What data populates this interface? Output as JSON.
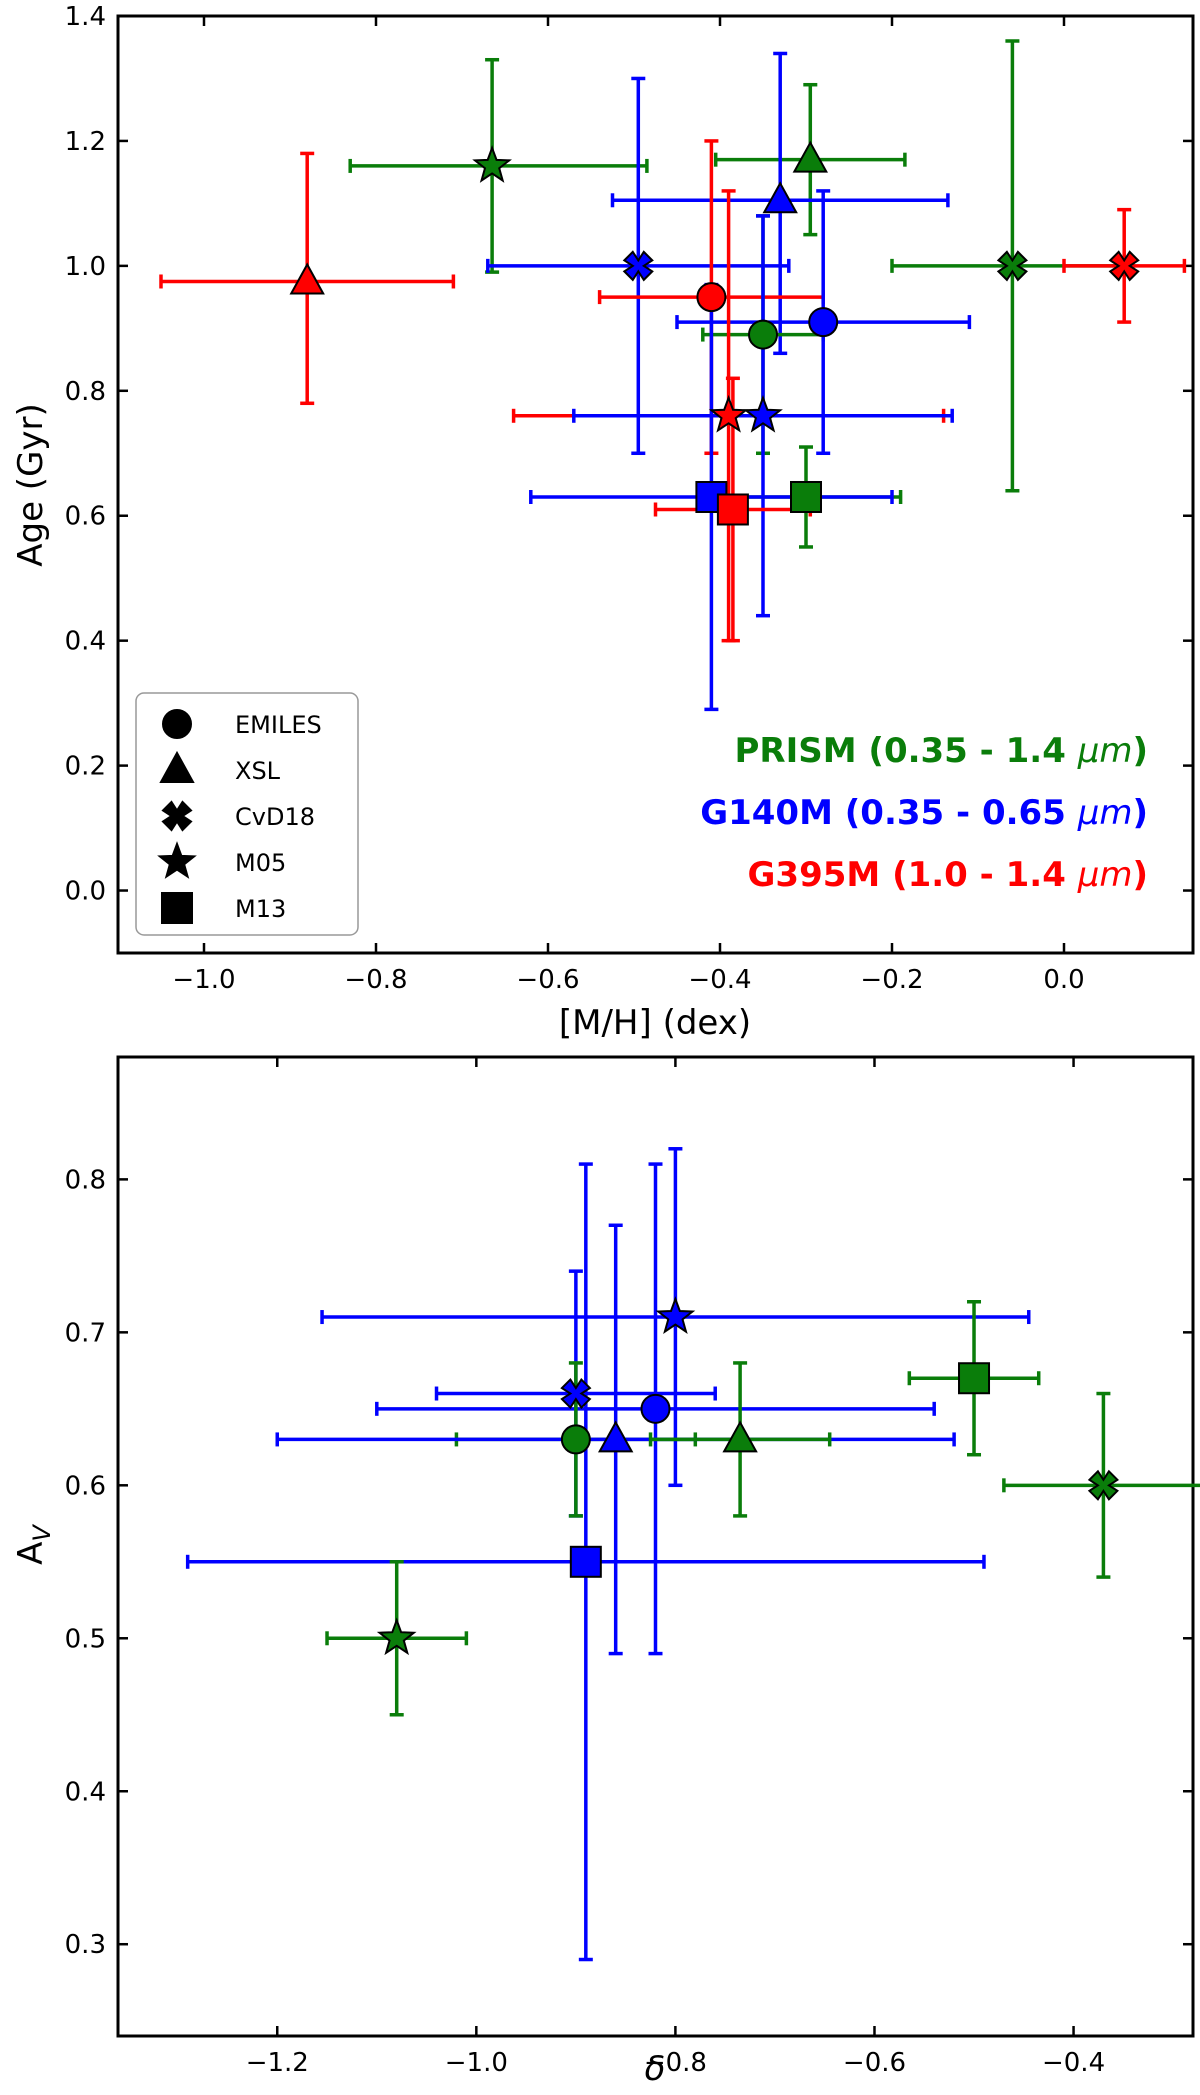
{
  "colors": {
    "PRISM": "#0a7d0a",
    "G140M": "#0000ff",
    "G395M": "#ff0000"
  },
  "legend": {
    "entries": [
      {
        "marker": "circle",
        "label": "EMILES"
      },
      {
        "marker": "triangle",
        "label": "XSL"
      },
      {
        "marker": "x",
        "label": "CvD18"
      },
      {
        "marker": "star",
        "label": "M05"
      },
      {
        "marker": "square",
        "label": "M13"
      }
    ]
  },
  "bands": [
    {
      "key": "PRISM",
      "name": "PRISM",
      "range_pre": "(0.35 - 1.4 ",
      "unit": "μm",
      "range_post": ")"
    },
    {
      "key": "G140M",
      "name": "G140M",
      "range_pre": "(0.35 - 0.65 ",
      "unit": "μm",
      "range_post": ")"
    },
    {
      "key": "G395M",
      "name": "G395M",
      "range_pre": "(1.0 - 1.4 ",
      "unit": "μm",
      "range_post": ")"
    }
  ],
  "chart_data": [
    {
      "type": "scatter",
      "title": "",
      "xlabel": "[M/H] (dex)",
      "ylabel": "Age (Gyr)",
      "xlim": [
        -1.1,
        0.15
      ],
      "ylim": [
        -0.1,
        1.4
      ],
      "xticks": [
        -1.0,
        -0.8,
        -0.6,
        -0.4,
        -0.2,
        0.0
      ],
      "xtick_labels": [
        "−1.0",
        "−0.8",
        "−0.6",
        "−0.4",
        "−0.2",
        "0.0"
      ],
      "yticks": [
        0.0,
        0.2,
        0.4,
        0.6,
        0.8,
        1.0,
        1.2,
        1.4
      ],
      "ytick_labels": [
        "0.0",
        "0.2",
        "0.4",
        "0.6",
        "0.8",
        "1.0",
        "1.2",
        "1.4"
      ],
      "points": [
        {
          "series": "G395M",
          "model": "XSL",
          "x": -0.88,
          "y": 0.975,
          "xerr": [
            0.17,
            0.17
          ],
          "yerr": [
            0.195,
            0.205
          ]
        },
        {
          "series": "PRISM",
          "model": "M05",
          "x": -0.665,
          "y": 1.16,
          "xerr": [
            0.165,
            0.18
          ],
          "yerr": [
            0.17,
            0.17
          ]
        },
        {
          "series": "PRISM",
          "model": "XSL",
          "x": -0.295,
          "y": 1.17,
          "xerr": [
            0.11,
            0.11
          ],
          "yerr": [
            0.12,
            0.12
          ]
        },
        {
          "series": "PRISM",
          "model": "CvD18",
          "x": -0.06,
          "y": 1.0,
          "xerr": [
            0.14,
            0.14
          ],
          "yerr": [
            0.36,
            0.36
          ]
        },
        {
          "series": "G395M",
          "model": "CvD18",
          "x": 0.07,
          "y": 1.0,
          "xerr": [
            0.07,
            0.07
          ],
          "yerr": [
            0.09,
            0.09
          ]
        },
        {
          "series": "G140M",
          "model": "CvD18",
          "x": -0.495,
          "y": 1.0,
          "xerr": [
            0.175,
            0.175
          ],
          "yerr": [
            0.3,
            0.3
          ]
        },
        {
          "series": "G140M",
          "model": "XSL",
          "x": -0.33,
          "y": 1.105,
          "xerr": [
            0.195,
            0.195
          ],
          "yerr": [
            0.245,
            0.235
          ]
        },
        {
          "series": "G395M",
          "model": "EMILES",
          "x": -0.41,
          "y": 0.95,
          "xerr": [
            0.13,
            0.13
          ],
          "yerr": [
            0.25,
            0.25
          ]
        },
        {
          "series": "PRISM",
          "model": "EMILES",
          "x": -0.35,
          "y": 0.89,
          "xerr": [
            0.07,
            0.07
          ],
          "yerr": [
            0.19,
            0.19
          ]
        },
        {
          "series": "G140M",
          "model": "EMILES",
          "x": -0.28,
          "y": 0.91,
          "xerr": [
            0.17,
            0.17
          ],
          "yerr": [
            0.21,
            0.21
          ]
        },
        {
          "series": "G395M",
          "model": "M05",
          "x": -0.39,
          "y": 0.76,
          "xerr": [
            0.25,
            0.25
          ],
          "yerr": [
            0.36,
            0.36
          ]
        },
        {
          "series": "G140M",
          "model": "M05",
          "x": -0.35,
          "y": 0.76,
          "xerr": [
            0.22,
            0.22
          ],
          "yerr": [
            0.32,
            0.32
          ]
        },
        {
          "series": "PRISM",
          "model": "M13",
          "x": -0.3,
          "y": 0.63,
          "xerr": [
            0.11,
            0.11
          ],
          "yerr": [
            0.08,
            0.08
          ]
        },
        {
          "series": "G140M",
          "model": "M13",
          "x": -0.41,
          "y": 0.63,
          "xerr": [
            0.21,
            0.21
          ],
          "yerr": [
            0.34,
            0.34
          ]
        },
        {
          "series": "G395M",
          "model": "M13",
          "x": -0.385,
          "y": 0.61,
          "xerr": [
            0.09,
            0.09
          ],
          "yerr": [
            0.21,
            0.21
          ]
        }
      ]
    },
    {
      "type": "scatter",
      "title": "",
      "xlabel": "δ",
      "ylabel": "A",
      "ylabel_sub": "V",
      "xlim": [
        -1.36,
        -0.28
      ],
      "ylim": [
        0.24,
        0.88
      ],
      "xticks": [
        -1.2,
        -1.0,
        -0.8,
        -0.6,
        -0.4
      ],
      "xtick_labels": [
        "−1.2",
        "−1.0",
        "−0.8",
        "−0.6",
        "−0.4"
      ],
      "yticks": [
        0.3,
        0.4,
        0.5,
        0.6,
        0.7,
        0.8
      ],
      "ytick_labels": [
        "0.3",
        "0.4",
        "0.5",
        "0.6",
        "0.7",
        "0.8"
      ],
      "points": [
        {
          "series": "G140M",
          "model": "M05",
          "x": -0.8,
          "y": 0.71,
          "xerr": [
            0.355,
            0.355
          ],
          "yerr": [
            0.11,
            0.11
          ]
        },
        {
          "series": "PRISM",
          "model": "M13",
          "x": -0.5,
          "y": 0.67,
          "xerr": [
            0.065,
            0.065
          ],
          "yerr": [
            0.05,
            0.05
          ]
        },
        {
          "series": "G140M",
          "model": "CvD18",
          "x": -0.9,
          "y": 0.66,
          "xerr": [
            0.14,
            0.14
          ],
          "yerr": [
            0.08,
            0.08
          ]
        },
        {
          "series": "G140M",
          "model": "EMILES",
          "x": -0.82,
          "y": 0.65,
          "xerr": [
            0.28,
            0.28
          ],
          "yerr": [
            0.16,
            0.16
          ]
        },
        {
          "series": "PRISM",
          "model": "EMILES",
          "x": -0.9,
          "y": 0.63,
          "xerr": [
            0.12,
            0.12
          ],
          "yerr": [
            0.05,
            0.05
          ]
        },
        {
          "series": "G140M",
          "model": "XSL",
          "x": -0.86,
          "y": 0.63,
          "xerr": [
            0.34,
            0.34
          ],
          "yerr": [
            0.14,
            0.14
          ]
        },
        {
          "series": "PRISM",
          "model": "XSL",
          "x": -0.735,
          "y": 0.63,
          "xerr": [
            0.09,
            0.09
          ],
          "yerr": [
            0.05,
            0.05
          ]
        },
        {
          "series": "PRISM",
          "model": "CvD18",
          "x": -0.37,
          "y": 0.6,
          "xerr": [
            0.1,
            0.1
          ],
          "yerr": [
            0.06,
            0.06
          ]
        },
        {
          "series": "G140M",
          "model": "M13",
          "x": -0.89,
          "y": 0.55,
          "xerr": [
            0.4,
            0.4
          ],
          "yerr": [
            0.26,
            0.26
          ]
        },
        {
          "series": "PRISM",
          "model": "M05",
          "x": -1.08,
          "y": 0.5,
          "xerr": [
            0.07,
            0.07
          ],
          "yerr": [
            0.05,
            0.05
          ]
        }
      ]
    }
  ]
}
